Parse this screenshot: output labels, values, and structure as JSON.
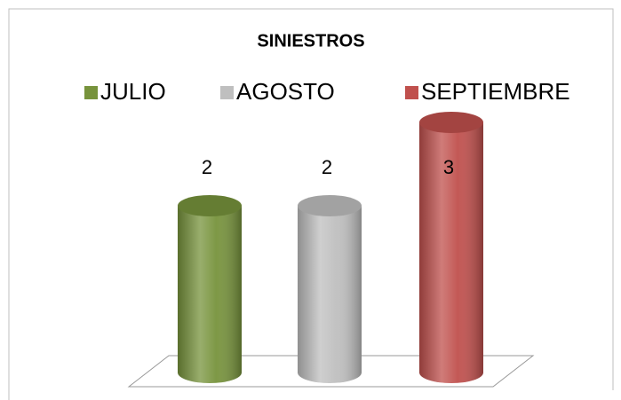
{
  "chart_data": {
    "type": "bar",
    "title": "SINIESTROS",
    "legend": "top",
    "series": [
      {
        "name": "JULIO",
        "color": "#77933c",
        "values": [
          2
        ]
      },
      {
        "name": "AGOSTO",
        "color": "#bfbfbf",
        "values": [
          2
        ]
      },
      {
        "name": "SEPTIEMBRE",
        "color": "#c0504d",
        "values": [
          3
        ]
      }
    ]
  }
}
